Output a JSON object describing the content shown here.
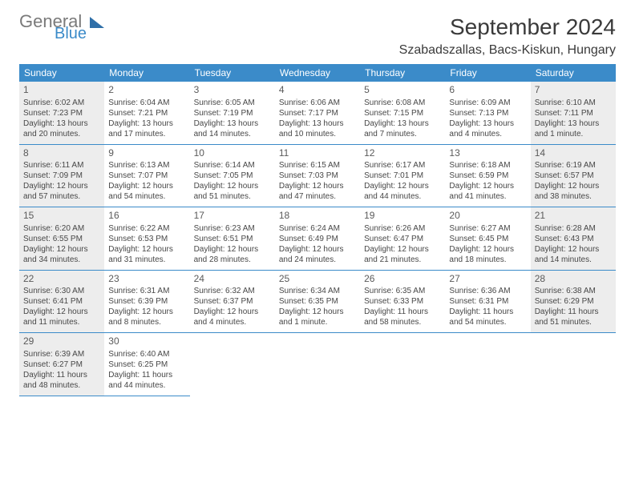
{
  "logo": {
    "general": "General",
    "blue": "Blue"
  },
  "header": {
    "month_title": "September 2024",
    "location": "Szabadszallas, Bacs-Kiskun, Hungary"
  },
  "colors": {
    "header_bg": "#3b8bc9",
    "header_text": "#ffffff",
    "shade_bg": "#ededed",
    "border": "#3b8bc9",
    "body_text": "#474747"
  },
  "day_headers": [
    "Sunday",
    "Monday",
    "Tuesday",
    "Wednesday",
    "Thursday",
    "Friday",
    "Saturday"
  ],
  "weeks": [
    [
      {
        "n": "1",
        "shade": true,
        "sr": "6:02 AM",
        "ss": "7:23 PM",
        "dl": "13 hours and 20 minutes."
      },
      {
        "n": "2",
        "shade": false,
        "sr": "6:04 AM",
        "ss": "7:21 PM",
        "dl": "13 hours and 17 minutes."
      },
      {
        "n": "3",
        "shade": false,
        "sr": "6:05 AM",
        "ss": "7:19 PM",
        "dl": "13 hours and 14 minutes."
      },
      {
        "n": "4",
        "shade": false,
        "sr": "6:06 AM",
        "ss": "7:17 PM",
        "dl": "13 hours and 10 minutes."
      },
      {
        "n": "5",
        "shade": false,
        "sr": "6:08 AM",
        "ss": "7:15 PM",
        "dl": "13 hours and 7 minutes."
      },
      {
        "n": "6",
        "shade": false,
        "sr": "6:09 AM",
        "ss": "7:13 PM",
        "dl": "13 hours and 4 minutes."
      },
      {
        "n": "7",
        "shade": true,
        "sr": "6:10 AM",
        "ss": "7:11 PM",
        "dl": "13 hours and 1 minute."
      }
    ],
    [
      {
        "n": "8",
        "shade": true,
        "sr": "6:11 AM",
        "ss": "7:09 PM",
        "dl": "12 hours and 57 minutes."
      },
      {
        "n": "9",
        "shade": false,
        "sr": "6:13 AM",
        "ss": "7:07 PM",
        "dl": "12 hours and 54 minutes."
      },
      {
        "n": "10",
        "shade": false,
        "sr": "6:14 AM",
        "ss": "7:05 PM",
        "dl": "12 hours and 51 minutes."
      },
      {
        "n": "11",
        "shade": false,
        "sr": "6:15 AM",
        "ss": "7:03 PM",
        "dl": "12 hours and 47 minutes."
      },
      {
        "n": "12",
        "shade": false,
        "sr": "6:17 AM",
        "ss": "7:01 PM",
        "dl": "12 hours and 44 minutes."
      },
      {
        "n": "13",
        "shade": false,
        "sr": "6:18 AM",
        "ss": "6:59 PM",
        "dl": "12 hours and 41 minutes."
      },
      {
        "n": "14",
        "shade": true,
        "sr": "6:19 AM",
        "ss": "6:57 PM",
        "dl": "12 hours and 38 minutes."
      }
    ],
    [
      {
        "n": "15",
        "shade": true,
        "sr": "6:20 AM",
        "ss": "6:55 PM",
        "dl": "12 hours and 34 minutes."
      },
      {
        "n": "16",
        "shade": false,
        "sr": "6:22 AM",
        "ss": "6:53 PM",
        "dl": "12 hours and 31 minutes."
      },
      {
        "n": "17",
        "shade": false,
        "sr": "6:23 AM",
        "ss": "6:51 PM",
        "dl": "12 hours and 28 minutes."
      },
      {
        "n": "18",
        "shade": false,
        "sr": "6:24 AM",
        "ss": "6:49 PM",
        "dl": "12 hours and 24 minutes."
      },
      {
        "n": "19",
        "shade": false,
        "sr": "6:26 AM",
        "ss": "6:47 PM",
        "dl": "12 hours and 21 minutes."
      },
      {
        "n": "20",
        "shade": false,
        "sr": "6:27 AM",
        "ss": "6:45 PM",
        "dl": "12 hours and 18 minutes."
      },
      {
        "n": "21",
        "shade": true,
        "sr": "6:28 AM",
        "ss": "6:43 PM",
        "dl": "12 hours and 14 minutes."
      }
    ],
    [
      {
        "n": "22",
        "shade": true,
        "sr": "6:30 AM",
        "ss": "6:41 PM",
        "dl": "12 hours and 11 minutes."
      },
      {
        "n": "23",
        "shade": false,
        "sr": "6:31 AM",
        "ss": "6:39 PM",
        "dl": "12 hours and 8 minutes."
      },
      {
        "n": "24",
        "shade": false,
        "sr": "6:32 AM",
        "ss": "6:37 PM",
        "dl": "12 hours and 4 minutes."
      },
      {
        "n": "25",
        "shade": false,
        "sr": "6:34 AM",
        "ss": "6:35 PM",
        "dl": "12 hours and 1 minute."
      },
      {
        "n": "26",
        "shade": false,
        "sr": "6:35 AM",
        "ss": "6:33 PM",
        "dl": "11 hours and 58 minutes."
      },
      {
        "n": "27",
        "shade": false,
        "sr": "6:36 AM",
        "ss": "6:31 PM",
        "dl": "11 hours and 54 minutes."
      },
      {
        "n": "28",
        "shade": true,
        "sr": "6:38 AM",
        "ss": "6:29 PM",
        "dl": "11 hours and 51 minutes."
      }
    ],
    [
      {
        "n": "29",
        "shade": true,
        "sr": "6:39 AM",
        "ss": "6:27 PM",
        "dl": "11 hours and 48 minutes."
      },
      {
        "n": "30",
        "shade": false,
        "sr": "6:40 AM",
        "ss": "6:25 PM",
        "dl": "11 hours and 44 minutes."
      },
      null,
      null,
      null,
      null,
      null
    ]
  ],
  "labels": {
    "sunrise_prefix": "Sunrise: ",
    "sunset_prefix": "Sunset: ",
    "daylight_prefix": "Daylight: "
  }
}
